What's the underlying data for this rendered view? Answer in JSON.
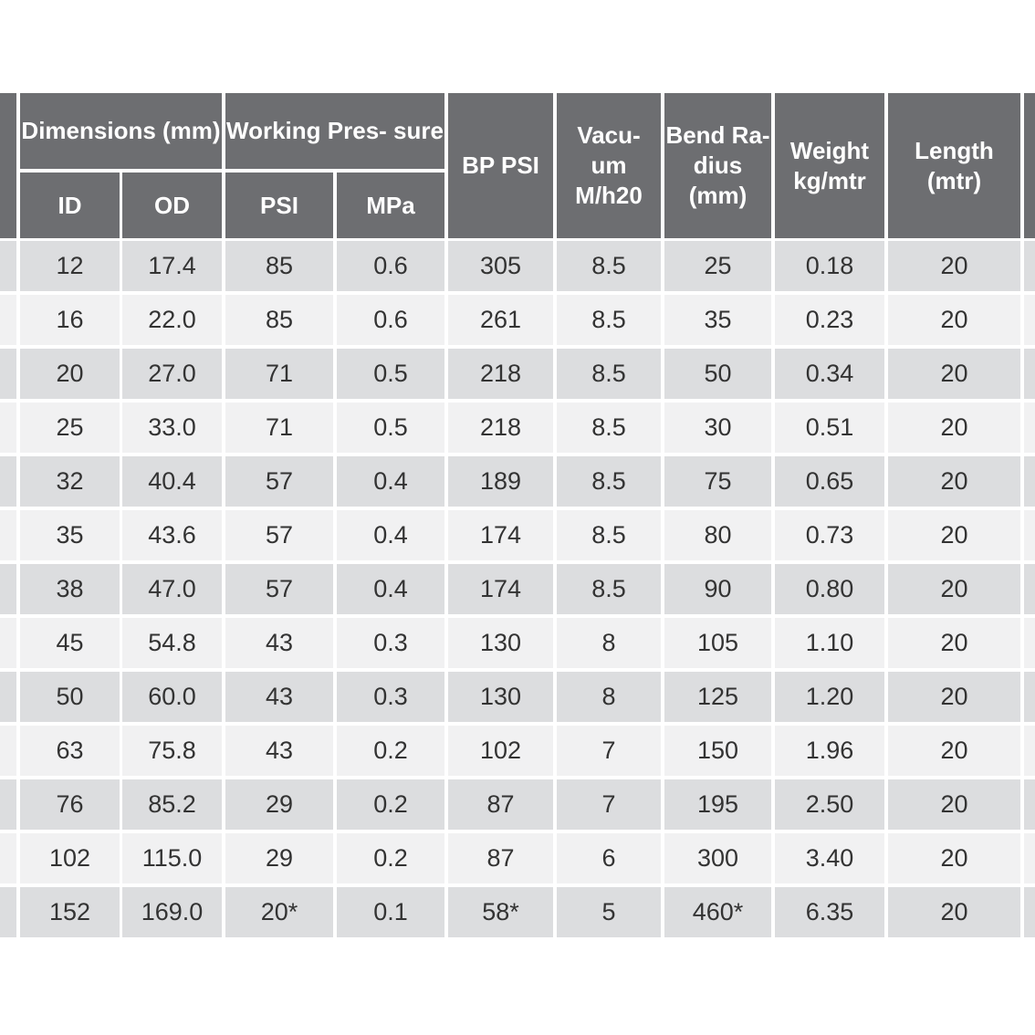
{
  "header": {
    "dimensions": "Dimensions (mm)",
    "working_pressure": "Working Pres- sure",
    "id": "ID",
    "od": "OD",
    "psi": "PSI",
    "mpa": "MPa",
    "bp_psi": "BP PSI",
    "vacuum": "Vacu- um M/h20",
    "bend_radius": "Bend Ra- dius (mm)",
    "weight": "Weight kg/mtr",
    "length": "Length (mtr)"
  },
  "rows": [
    [
      "12",
      "17.4",
      "85",
      "0.6",
      "305",
      "8.5",
      "25",
      "0.18",
      "20"
    ],
    [
      "16",
      "22.0",
      "85",
      "0.6",
      "261",
      "8.5",
      "35",
      "0.23",
      "20"
    ],
    [
      "20",
      "27.0",
      "71",
      "0.5",
      "218",
      "8.5",
      "50",
      "0.34",
      "20"
    ],
    [
      "25",
      "33.0",
      "71",
      "0.5",
      "218",
      "8.5",
      "30",
      "0.51",
      "20"
    ],
    [
      "32",
      "40.4",
      "57",
      "0.4",
      "189",
      "8.5",
      "75",
      "0.65",
      "20"
    ],
    [
      "35",
      "43.6",
      "57",
      "0.4",
      "174",
      "8.5",
      "80",
      "0.73",
      "20"
    ],
    [
      "38",
      "47.0",
      "57",
      "0.4",
      "174",
      "8.5",
      "90",
      "0.80",
      "20"
    ],
    [
      "45",
      "54.8",
      "43",
      "0.3",
      "130",
      "8",
      "105",
      "1.10",
      "20"
    ],
    [
      "50",
      "60.0",
      "43",
      "0.3",
      "130",
      "8",
      "125",
      "1.20",
      "20"
    ],
    [
      "63",
      "75.8",
      "43",
      "0.2",
      "102",
      "7",
      "150",
      "1.96",
      "20"
    ],
    [
      "76",
      "85.2",
      "29",
      "0.2",
      "87",
      "7",
      "195",
      "2.50",
      "20"
    ],
    [
      "102",
      "115.0",
      "29",
      "0.2",
      "87",
      "6",
      "300",
      "3.40",
      "20"
    ],
    [
      "152",
      "169.0",
      "20*",
      "0.1",
      "58*",
      "5",
      "460*",
      "6.35",
      "20"
    ]
  ],
  "colors": {
    "header_bg": "#6d6e71",
    "header_text": "#ffffff",
    "row_odd": "#dcdddf",
    "row_even": "#f1f1f2"
  }
}
